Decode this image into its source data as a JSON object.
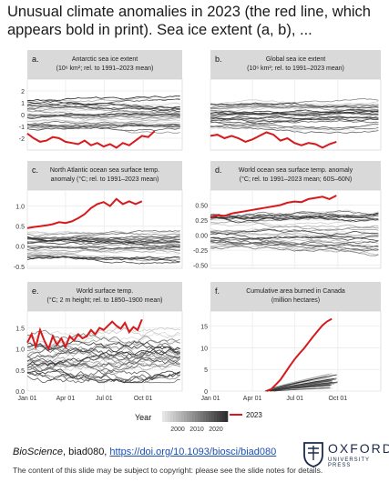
{
  "slide_title": "Unusual climate anomalies in 2023 (the red line, which appears bold in print). Sea ice extent (a, b), ...",
  "footer": {
    "journal": "BioScience",
    "citation_rest": ", biad080, ",
    "doi": "https://doi.org/10.1093/biosci/biad080",
    "note": "The content of this slide may be subject to copyright: please see the slide notes for details."
  },
  "logo": {
    "word": "OXFORD",
    "sub": "UNIVERSITY PRESS",
    "icon": "oxford-crest-icon"
  },
  "colors": {
    "highlight": "#d7191c",
    "panel_bg": "#ffffff",
    "strip_bg": "#d9d9d9",
    "grid": "#ebebeb",
    "line_dark": "#333333",
    "line_light": "#cccccc"
  },
  "chart_data": [
    {
      "id": "a",
      "type": "line",
      "tag": "a.",
      "title_lines": [
        "Antarctic sea ice extent",
        "(10⁶ km²; rel. to 1991–2023 mean)"
      ],
      "ylim": [
        -3,
        3
      ],
      "yticks": [
        "2",
        "1",
        "0",
        "-1",
        "-2"
      ],
      "ytick_values": [
        2,
        1,
        0,
        -1,
        -2
      ],
      "show_y": true,
      "show_x": false,
      "xlim": [
        0,
        365
      ],
      "spread": {
        "center": 0,
        "amp": 1.2
      },
      "highlight": {
        "x": [
          0,
          15,
          30,
          45,
          60,
          75,
          90,
          105,
          120,
          135,
          150,
          165,
          180,
          195,
          210,
          225,
          240,
          255,
          270,
          285,
          300
        ],
        "y": [
          -1.6,
          -2.0,
          -2.3,
          -2.2,
          -1.9,
          -2.0,
          -2.3,
          -2.4,
          -2.5,
          -2.2,
          -2.6,
          -2.4,
          -2.7,
          -2.5,
          -2.8,
          -2.4,
          -2.6,
          -2.2,
          -1.8,
          -1.9,
          -1.4
        ]
      }
    },
    {
      "id": "b",
      "type": "line",
      "tag": "b.",
      "title_lines": [
        "Global sea ice extent",
        "(10⁶ km²; rel. to 1991–2023 mean)"
      ],
      "ylim": [
        -3,
        3
      ],
      "yticks": [],
      "ytick_values": [],
      "show_y": false,
      "show_x": false,
      "xlim": [
        0,
        365
      ],
      "spread": {
        "center": 0,
        "amp": 1.2
      },
      "highlight": {
        "x": [
          0,
          15,
          30,
          45,
          60,
          75,
          90,
          105,
          120,
          135,
          150,
          165,
          180,
          195,
          210,
          225,
          240,
          255,
          270
        ],
        "y": [
          -1.8,
          -1.7,
          -2.0,
          -1.8,
          -2.0,
          -2.3,
          -2.1,
          -1.8,
          -1.5,
          -1.7,
          -2.2,
          -2.0,
          -2.4,
          -2.6,
          -2.4,
          -2.5,
          -2.8,
          -2.5,
          -2.3
        ]
      }
    },
    {
      "id": "c",
      "type": "line",
      "tag": "c.",
      "title_lines": [
        "North Atlantic ocean sea surface temp.",
        "anomaly (°C; rel. to 1991–2023 mean)"
      ],
      "ylim": [
        -0.55,
        1.4
      ],
      "yticks": [
        "1.0",
        "0.5",
        "0.0",
        "-0.5"
      ],
      "ytick_values": [
        1.0,
        0.5,
        0.0,
        -0.5
      ],
      "show_y": true,
      "show_x": false,
      "xlim": [
        0,
        365
      ],
      "spread": {
        "center": 0.0,
        "amp": 0.35
      },
      "highlight": {
        "x": [
          0,
          15,
          30,
          45,
          60,
          75,
          90,
          105,
          120,
          135,
          150,
          165,
          180,
          195,
          210,
          225,
          240,
          255,
          270
        ],
        "y": [
          0.45,
          0.48,
          0.5,
          0.52,
          0.55,
          0.6,
          0.58,
          0.62,
          0.7,
          0.8,
          0.95,
          1.05,
          1.1,
          1.0,
          1.18,
          1.05,
          1.12,
          1.05,
          1.12
        ]
      }
    },
    {
      "id": "d",
      "type": "line",
      "tag": "d.",
      "title_lines": [
        "World ocean sea surface temp. anomaly",
        "(°C; rel. to 1991–2023 mean; 60S–60N)"
      ],
      "ylim": [
        -0.55,
        0.75
      ],
      "yticks": [
        "0.50",
        "0.25",
        "0.00",
        "-0.25",
        "-0.50"
      ],
      "ytick_values": [
        0.5,
        0.25,
        0.0,
        -0.25,
        -0.5
      ],
      "show_y": true,
      "show_x": false,
      "xlim": [
        0,
        365
      ],
      "spread": {
        "center": 0.05,
        "amp": 0.3
      },
      "highlight": {
        "x": [
          0,
          15,
          30,
          45,
          60,
          75,
          90,
          105,
          120,
          135,
          150,
          165,
          180,
          195,
          210,
          225,
          240,
          255,
          270
        ],
        "y": [
          0.3,
          0.33,
          0.32,
          0.36,
          0.38,
          0.4,
          0.42,
          0.44,
          0.46,
          0.48,
          0.5,
          0.54,
          0.56,
          0.55,
          0.6,
          0.62,
          0.64,
          0.6,
          0.66
        ]
      }
    },
    {
      "id": "e",
      "type": "line",
      "tag": "e.",
      "title_lines": [
        "World surface temp.",
        "(°C; 2 m height; rel. to 1850–1900 mean)"
      ],
      "ylim": [
        0,
        1.9
      ],
      "yticks": [
        "1.5",
        "1.0",
        "0.5",
        "0.0"
      ],
      "ytick_values": [
        1.5,
        1.0,
        0.5,
        0.0
      ],
      "show_y": true,
      "show_x": true,
      "xlim": [
        0,
        365
      ],
      "xticks": [
        "Jan 01",
        "Apr 01",
        "Jul 01",
        "Oct 01"
      ],
      "xtick_values": [
        0,
        90,
        181,
        273
      ],
      "spread": {
        "center": 0.85,
        "amp": 0.5
      },
      "highlight": {
        "x": [
          0,
          10,
          20,
          30,
          40,
          50,
          60,
          70,
          80,
          90,
          100,
          110,
          120,
          130,
          140,
          150,
          160,
          170,
          180,
          190,
          200,
          210,
          220,
          230,
          240,
          250,
          260,
          270
        ],
        "y": [
          1.15,
          1.35,
          1.05,
          1.45,
          1.2,
          1.0,
          1.3,
          1.1,
          1.25,
          1.05,
          1.3,
          1.2,
          1.35,
          1.25,
          1.3,
          1.45,
          1.35,
          1.5,
          1.45,
          1.55,
          1.65,
          1.55,
          1.48,
          1.62,
          1.4,
          1.52,
          1.45,
          1.7
        ]
      }
    },
    {
      "id": "f",
      "type": "line",
      "tag": "f.",
      "title_lines": [
        "Cumulative area burned in Canada",
        "(million hectares)"
      ],
      "ylim": [
        0,
        18.5
      ],
      "yticks": [
        "15",
        "10",
        "5",
        "0"
      ],
      "ytick_values": [
        15,
        10,
        5,
        0
      ],
      "show_y": true,
      "show_x": true,
      "xlim": [
        0,
        365
      ],
      "xticks": [
        "Jan 01",
        "Apr 01",
        "Jul 01",
        "Oct 01"
      ],
      "xtick_values": [
        0,
        90,
        181,
        273
      ],
      "cumulative": true,
      "highlight": {
        "x": [
          120,
          130,
          140,
          150,
          160,
          170,
          180,
          190,
          200,
          210,
          220,
          230,
          240,
          250,
          260
        ],
        "y": [
          0,
          0.4,
          1.5,
          2.6,
          4.2,
          5.8,
          7.3,
          8.6,
          9.8,
          11.2,
          12.6,
          13.9,
          15.2,
          16.1,
          16.7
        ]
      }
    }
  ],
  "legend": {
    "year_label": "Year",
    "year_ticks": [
      "2000",
      "2010",
      "2020"
    ],
    "series_label": "2023"
  }
}
